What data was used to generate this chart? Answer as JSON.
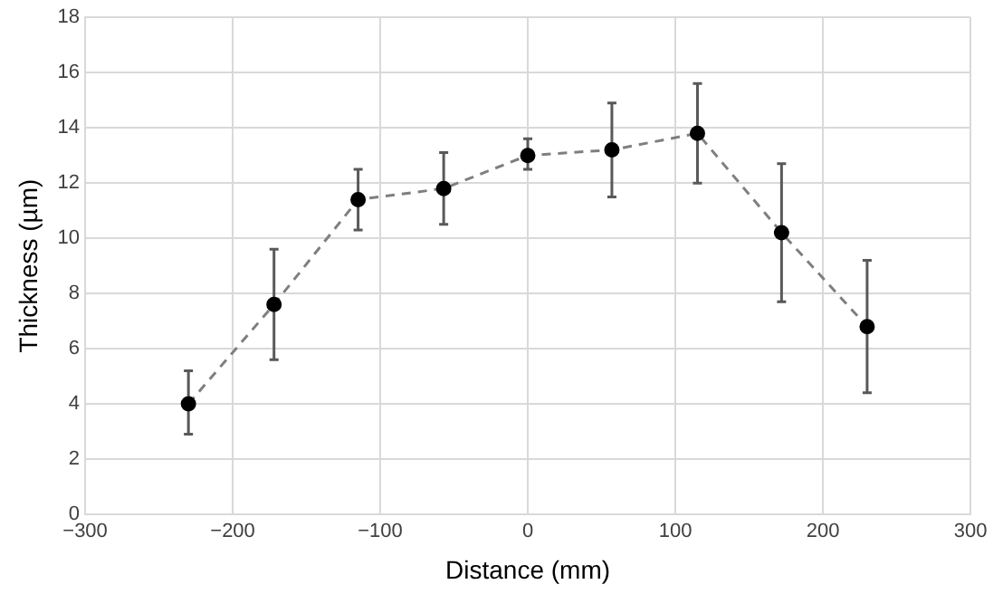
{
  "chart_data": {
    "type": "line",
    "xlabel": "Distance (mm)",
    "ylabel": "Thickness (µm)",
    "x": [
      -230,
      -172,
      -115,
      -57,
      0,
      57,
      115,
      172,
      230
    ],
    "series": [
      {
        "color": "#000000",
        "values": [
          4.0,
          7.6,
          11.4,
          11.8,
          13.0,
          13.2,
          13.8,
          10.2,
          6.8
        ],
        "errors": [
          [
            2.9,
            5.2
          ],
          [
            5.6,
            9.6
          ],
          [
            10.3,
            12.5
          ],
          [
            10.5,
            13.1
          ],
          [
            12.5,
            13.6
          ],
          [
            11.5,
            14.9
          ],
          [
            12.0,
            15.6
          ],
          [
            7.7,
            12.7
          ],
          [
            4.4,
            9.2
          ]
        ]
      }
    ],
    "xlim": [
      -300,
      300
    ],
    "xticks": [
      -300,
      -200,
      -100,
      0,
      100,
      200,
      300
    ],
    "ylim": [
      0,
      18
    ],
    "yticks": [
      0,
      2,
      4,
      6,
      8,
      10,
      12,
      14,
      16,
      18
    ],
    "grid": true,
    "legend": false,
    "marker": "circle",
    "line_style": "dashed"
  }
}
